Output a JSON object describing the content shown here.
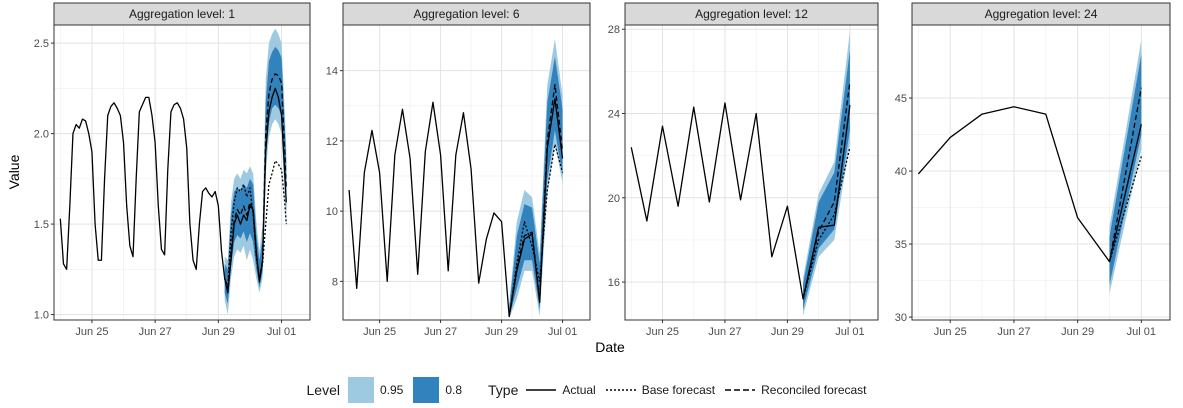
{
  "chart_data": {
    "type": "line",
    "x_label": "Date",
    "y_label": "Value",
    "x_tick_labels": [
      "Jun 25",
      "Jun 27",
      "Jun 29",
      "Jul 01"
    ],
    "facets": [
      {
        "strip": "Aggregation level: 1",
        "y_ticks": [
          "1.0",
          "1.5",
          "2.0",
          "2.5"
        ],
        "y_tick_values": [
          1.0,
          1.5,
          2.0,
          2.5
        ],
        "ylim": [
          0.97,
          2.6
        ],
        "xlim": [
          -0.2,
          7.9
        ],
        "actual": [
          [
            0.0,
            1.53
          ],
          [
            0.1,
            1.28
          ],
          [
            0.2,
            1.25
          ],
          [
            0.3,
            1.6
          ],
          [
            0.4,
            2.0
          ],
          [
            0.5,
            2.05
          ],
          [
            0.6,
            2.03
          ],
          [
            0.7,
            2.08
          ],
          [
            0.8,
            2.07
          ],
          [
            0.9,
            2.0
          ],
          [
            1.0,
            1.9
          ],
          [
            1.1,
            1.5
          ],
          [
            1.2,
            1.3
          ],
          [
            1.3,
            1.3
          ],
          [
            1.4,
            1.75
          ],
          [
            1.5,
            2.1
          ],
          [
            1.6,
            2.15
          ],
          [
            1.7,
            2.17
          ],
          [
            1.8,
            2.14
          ],
          [
            1.9,
            2.1
          ],
          [
            2.0,
            1.95
          ],
          [
            2.1,
            1.6
          ],
          [
            2.2,
            1.38
          ],
          [
            2.3,
            1.32
          ],
          [
            2.4,
            1.75
          ],
          [
            2.5,
            2.12
          ],
          [
            2.6,
            2.16
          ],
          [
            2.7,
            2.2
          ],
          [
            2.8,
            2.2
          ],
          [
            2.9,
            2.1
          ],
          [
            3.0,
            1.95
          ],
          [
            3.1,
            1.6
          ],
          [
            3.2,
            1.36
          ],
          [
            3.3,
            1.33
          ],
          [
            3.4,
            1.8
          ],
          [
            3.5,
            2.12
          ],
          [
            3.6,
            2.16
          ],
          [
            3.7,
            2.17
          ],
          [
            3.8,
            2.14
          ],
          [
            3.9,
            2.08
          ],
          [
            4.0,
            1.92
          ],
          [
            4.1,
            1.5
          ],
          [
            4.2,
            1.3
          ],
          [
            4.3,
            1.25
          ],
          [
            4.4,
            1.5
          ],
          [
            4.5,
            1.68
          ],
          [
            4.6,
            1.7
          ],
          [
            4.7,
            1.67
          ],
          [
            4.8,
            1.65
          ],
          [
            4.9,
            1.68
          ],
          [
            5.0,
            1.6
          ],
          [
            5.1,
            1.35
          ],
          [
            5.2,
            1.2
          ],
          [
            5.3,
            1.12
          ],
          [
            5.4,
            1.3
          ],
          [
            5.5,
            1.5
          ],
          [
            5.6,
            1.55
          ],
          [
            5.7,
            1.5
          ],
          [
            5.8,
            1.55
          ],
          [
            5.9,
            1.52
          ],
          [
            6.0,
            1.6
          ],
          [
            6.1,
            1.58
          ],
          [
            6.2,
            1.35
          ],
          [
            6.3,
            1.18
          ],
          [
            6.4,
            1.3
          ],
          [
            6.5,
            1.9
          ],
          [
            6.6,
            2.12
          ],
          [
            6.7,
            2.2
          ],
          [
            6.8,
            2.25
          ],
          [
            6.9,
            2.2
          ],
          [
            7.0,
            2.1
          ],
          [
            7.1,
            1.78
          ],
          [
            7.15,
            1.62
          ]
        ],
        "base": [
          [
            5.2,
            1.2
          ],
          [
            5.3,
            1.15
          ],
          [
            5.4,
            1.45
          ],
          [
            5.5,
            1.62
          ],
          [
            5.6,
            1.7
          ],
          [
            5.7,
            1.68
          ],
          [
            5.8,
            1.72
          ],
          [
            5.9,
            1.65
          ],
          [
            6.0,
            1.7
          ],
          [
            6.1,
            1.55
          ],
          [
            6.2,
            1.32
          ],
          [
            6.3,
            1.2
          ],
          [
            6.4,
            1.28
          ],
          [
            6.5,
            1.5
          ],
          [
            6.6,
            1.72
          ],
          [
            6.7,
            1.78
          ],
          [
            6.8,
            1.85
          ],
          [
            6.9,
            1.83
          ],
          [
            7.0,
            1.8
          ],
          [
            7.1,
            1.62
          ],
          [
            7.15,
            1.5
          ]
        ],
        "reconciled": [
          [
            5.2,
            1.2
          ],
          [
            5.3,
            1.15
          ],
          [
            5.4,
            1.35
          ],
          [
            5.5,
            1.52
          ],
          [
            5.6,
            1.58
          ],
          [
            5.7,
            1.55
          ],
          [
            5.8,
            1.6
          ],
          [
            5.9,
            1.55
          ],
          [
            6.0,
            1.62
          ],
          [
            6.1,
            1.58
          ],
          [
            6.2,
            1.33
          ],
          [
            6.3,
            1.2
          ],
          [
            6.4,
            1.3
          ],
          [
            6.5,
            2.0
          ],
          [
            6.6,
            2.22
          ],
          [
            6.7,
            2.3
          ],
          [
            6.8,
            2.33
          ],
          [
            6.9,
            2.32
          ],
          [
            7.0,
            2.28
          ],
          [
            7.1,
            1.9
          ],
          [
            7.15,
            1.7
          ]
        ],
        "band95": [
          [
            5.2,
            1.08,
            1.32
          ],
          [
            5.3,
            1.0,
            1.3
          ],
          [
            5.4,
            1.2,
            1.62
          ],
          [
            5.5,
            1.32,
            1.75
          ],
          [
            5.6,
            1.36,
            1.78
          ],
          [
            5.7,
            1.34,
            1.75
          ],
          [
            5.8,
            1.38,
            1.8
          ],
          [
            5.9,
            1.3,
            1.78
          ],
          [
            6.0,
            1.36,
            1.82
          ],
          [
            6.1,
            1.3,
            1.78
          ],
          [
            6.2,
            1.2,
            1.52
          ],
          [
            6.3,
            1.12,
            1.35
          ],
          [
            6.4,
            1.2,
            1.5
          ],
          [
            6.5,
            1.78,
            2.3
          ],
          [
            6.6,
            1.98,
            2.5
          ],
          [
            6.7,
            2.05,
            2.55
          ],
          [
            6.8,
            2.08,
            2.58
          ],
          [
            6.9,
            2.05,
            2.55
          ],
          [
            7.0,
            2.0,
            2.5
          ],
          [
            7.1,
            1.65,
            2.12
          ],
          [
            7.15,
            1.48,
            1.92
          ]
        ],
        "band80": [
          [
            5.2,
            1.12,
            1.28
          ],
          [
            5.3,
            1.06,
            1.25
          ],
          [
            5.4,
            1.26,
            1.55
          ],
          [
            5.5,
            1.4,
            1.68
          ],
          [
            5.6,
            1.44,
            1.7
          ],
          [
            5.7,
            1.42,
            1.68
          ],
          [
            5.8,
            1.46,
            1.72
          ],
          [
            5.9,
            1.4,
            1.7
          ],
          [
            6.0,
            1.45,
            1.75
          ],
          [
            6.1,
            1.4,
            1.72
          ],
          [
            6.2,
            1.25,
            1.45
          ],
          [
            6.3,
            1.15,
            1.3
          ],
          [
            6.4,
            1.24,
            1.42
          ],
          [
            6.5,
            1.86,
            2.18
          ],
          [
            6.6,
            2.06,
            2.4
          ],
          [
            6.7,
            2.14,
            2.45
          ],
          [
            6.8,
            2.16,
            2.48
          ],
          [
            6.9,
            2.14,
            2.46
          ],
          [
            7.0,
            2.1,
            2.42
          ],
          [
            7.1,
            1.74,
            2.05
          ],
          [
            7.15,
            1.56,
            1.85
          ]
        ]
      },
      {
        "strip": "Aggregation level: 6",
        "y_ticks": [
          "8",
          "10",
          "12",
          "14"
        ],
        "y_tick_values": [
          8,
          10,
          12,
          14
        ],
        "ylim": [
          6.9,
          15.3
        ],
        "xlim": [
          -0.2,
          7.9
        ],
        "actual": [
          [
            0.0,
            10.6
          ],
          [
            0.25,
            7.8
          ],
          [
            0.5,
            11.1
          ],
          [
            0.75,
            12.3
          ],
          [
            1.0,
            11.1
          ],
          [
            1.25,
            8.0
          ],
          [
            1.5,
            11.6
          ],
          [
            1.75,
            12.9
          ],
          [
            2.0,
            11.5
          ],
          [
            2.25,
            8.2
          ],
          [
            2.5,
            11.7
          ],
          [
            2.75,
            13.1
          ],
          [
            3.0,
            11.6
          ],
          [
            3.25,
            8.3
          ],
          [
            3.5,
            11.6
          ],
          [
            3.75,
            12.8
          ],
          [
            4.0,
            11.2
          ],
          [
            4.25,
            7.95
          ],
          [
            4.5,
            9.2
          ],
          [
            4.75,
            9.95
          ],
          [
            5.0,
            9.7
          ],
          [
            5.25,
            7.0
          ],
          [
            5.5,
            8.3
          ],
          [
            5.75,
            9.2
          ],
          [
            6.0,
            9.35
          ],
          [
            6.25,
            7.4
          ],
          [
            6.5,
            11.8
          ],
          [
            6.75,
            13.2
          ],
          [
            7.0,
            11.5
          ]
        ],
        "base": [
          [
            5.25,
            7.0
          ],
          [
            5.5,
            8.5
          ],
          [
            5.75,
            9.7
          ],
          [
            6.0,
            9.0
          ],
          [
            6.25,
            8.0
          ],
          [
            6.5,
            10.6
          ],
          [
            6.75,
            11.9
          ],
          [
            7.0,
            11.1
          ]
        ],
        "reconciled": [
          [
            5.25,
            7.0
          ],
          [
            5.5,
            8.4
          ],
          [
            5.75,
            9.3
          ],
          [
            6.0,
            9.4
          ],
          [
            6.25,
            7.5
          ],
          [
            6.5,
            12.0
          ],
          [
            6.75,
            13.6
          ],
          [
            7.0,
            11.7
          ]
        ],
        "band95": [
          [
            5.25,
            6.95,
            7.35
          ],
          [
            5.5,
            7.5,
            9.7
          ],
          [
            5.75,
            8.3,
            10.6
          ],
          [
            6.0,
            8.3,
            10.4
          ],
          [
            6.25,
            7.0,
            8.8
          ],
          [
            6.5,
            10.5,
            13.6
          ],
          [
            6.75,
            11.9,
            14.9
          ],
          [
            7.0,
            10.8,
            13.3
          ]
        ],
        "band80": [
          [
            5.25,
            6.98,
            7.25
          ],
          [
            5.5,
            7.8,
            9.3
          ],
          [
            5.75,
            8.6,
            10.2
          ],
          [
            6.0,
            8.6,
            10.1
          ],
          [
            6.25,
            7.2,
            8.5
          ],
          [
            6.5,
            10.9,
            13.1
          ],
          [
            6.75,
            12.3,
            14.4
          ],
          [
            7.0,
            11.0,
            12.9
          ]
        ]
      },
      {
        "strip": "Aggregation level: 12",
        "y_ticks": [
          "16",
          "20",
          "24",
          "28"
        ],
        "y_tick_values": [
          16,
          20,
          24,
          28
        ],
        "ylim": [
          14.2,
          28.2
        ],
        "xlim": [
          -0.2,
          7.9
        ],
        "actual": [
          [
            0.0,
            22.4
          ],
          [
            0.5,
            18.9
          ],
          [
            1.0,
            23.4
          ],
          [
            1.5,
            19.6
          ],
          [
            2.0,
            24.3
          ],
          [
            2.5,
            19.8
          ],
          [
            3.0,
            24.5
          ],
          [
            3.5,
            19.9
          ],
          [
            4.0,
            24.0
          ],
          [
            4.5,
            17.2
          ],
          [
            5.0,
            19.6
          ],
          [
            5.5,
            15.2
          ],
          [
            6.0,
            18.6
          ],
          [
            6.5,
            18.7
          ],
          [
            7.0,
            24.4
          ]
        ],
        "base": [
          [
            5.5,
            15.2
          ],
          [
            6.0,
            18.0
          ],
          [
            6.5,
            19.2
          ],
          [
            7.0,
            22.4
          ]
        ],
        "reconciled": [
          [
            5.5,
            15.2
          ],
          [
            6.0,
            18.4
          ],
          [
            6.5,
            19.8
          ],
          [
            7.0,
            25.5
          ]
        ],
        "band95": [
          [
            5.5,
            14.4,
            16.2
          ],
          [
            6.0,
            17.2,
            20.2
          ],
          [
            6.5,
            18.0,
            21.7
          ],
          [
            7.0,
            22.6,
            27.9
          ]
        ],
        "band80": [
          [
            5.5,
            14.7,
            15.9
          ],
          [
            6.0,
            17.6,
            19.8
          ],
          [
            6.5,
            18.5,
            21.2
          ],
          [
            7.0,
            23.2,
            27.0
          ]
        ]
      },
      {
        "strip": "Aggregation level: 24",
        "y_ticks": [
          "30",
          "35",
          "40",
          "45"
        ],
        "y_tick_values": [
          30,
          35,
          40,
          45
        ],
        "ylim": [
          29.8,
          50.0
        ],
        "xlim": [
          -0.2,
          7.9
        ],
        "actual": [
          [
            0.0,
            39.8
          ],
          [
            1.0,
            42.3
          ],
          [
            2.0,
            43.9
          ],
          [
            3.0,
            44.4
          ],
          [
            4.0,
            43.9
          ],
          [
            5.0,
            36.8
          ],
          [
            6.0,
            33.8
          ],
          [
            7.0,
            43.2
          ]
        ],
        "base": [
          [
            6.0,
            33.8
          ],
          [
            7.0,
            41.0
          ]
        ],
        "reconciled": [
          [
            6.0,
            33.8
          ],
          [
            7.0,
            45.7
          ]
        ],
        "band95": [
          [
            6.0,
            31.6,
            36.2
          ],
          [
            7.0,
            41.5,
            49.0
          ]
        ],
        "band80": [
          [
            6.0,
            32.2,
            35.5
          ],
          [
            7.0,
            42.5,
            48.0
          ]
        ]
      }
    ]
  },
  "legend": {
    "level_title": "Level",
    "level_items": [
      {
        "label": "0.95",
        "color": "#9ecae1"
      },
      {
        "label": "0.8",
        "color": "#3182bd"
      }
    ],
    "type_title": "Type",
    "type_items": [
      {
        "label": "Actual",
        "dash": "solid"
      },
      {
        "label": "Base forecast",
        "dash": "dotted"
      },
      {
        "label": "Reconciled forecast",
        "dash": "dashed"
      }
    ]
  }
}
